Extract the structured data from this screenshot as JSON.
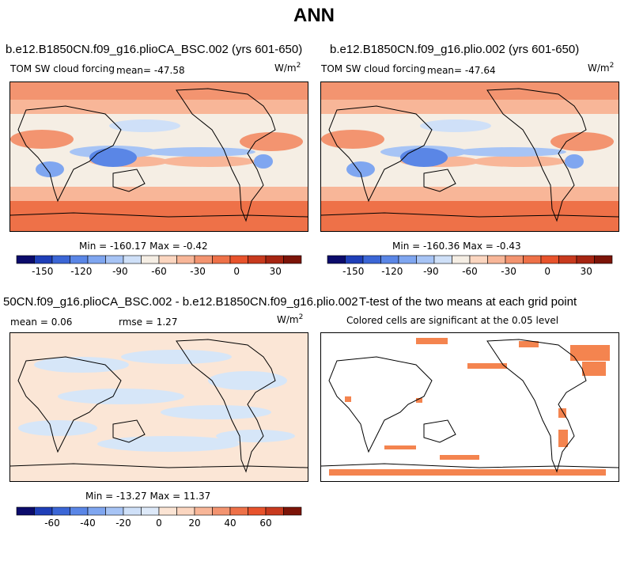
{
  "title": "ANN",
  "panels": [
    {
      "title": "b.e12.B1850CN.f09_g16.plioCA_BSC.002 (yrs 601-650)",
      "left_label": "TOM SW cloud forcing",
      "mean_label": "mean= -47.58",
      "units_prefix": "W/m",
      "units_exp": "2",
      "minmax": "Min = -160.17 Max = -0.42"
    },
    {
      "title": "b.e12.B1850CN.f09_g16.plio.002 (yrs 601-650)",
      "left_label": "TOM SW cloud forcing",
      "mean_label": "mean= -47.64",
      "units_prefix": "W/m",
      "units_exp": "2",
      "minmax": "Min = -160.36 Max = -0.43"
    },
    {
      "title": "50CN.f09_g16.plioCA_BSC.002 - b.e12.B1850CN.f09_g16.plio.002",
      "mean_label": "mean = 0.06",
      "rmse_label": "rmse = 1.27",
      "units_prefix": "W/m",
      "units_exp": "2",
      "minmax": "Min = -13.27 Max = 11.37"
    },
    {
      "title": "T-test of the two means at each grid point",
      "subtitle": "Colored cells are significant at the 0.05 level"
    }
  ],
  "chart_data": [
    {
      "type": "heatmap",
      "name": "model field colorbar",
      "levels": [
        -170,
        -160,
        -150,
        -135,
        -120,
        -105,
        -90,
        -75,
        -60,
        -45,
        -30,
        -15,
        0,
        15,
        30,
        45,
        50
      ],
      "tick_labels": [
        "-150",
        "-120",
        "-90",
        "-60",
        "-30",
        "0",
        "30"
      ],
      "tick_values": [
        -150,
        -120,
        -90,
        -60,
        -30,
        0,
        30
      ],
      "colors": [
        "#0b0b6b",
        "#1f3fb8",
        "#3b66d6",
        "#5a86e6",
        "#7fa6f0",
        "#a7c4f5",
        "#cfe0f8",
        "#f5eee4",
        "#fbd6c0",
        "#f8b698",
        "#f39470",
        "#ee7148",
        "#e8532c",
        "#c83a1e",
        "#a62512",
        "#7c1408"
      ]
    },
    {
      "type": "heatmap",
      "name": "difference colorbar",
      "levels": [
        -80,
        -70,
        -60,
        -50,
        -40,
        -30,
        -20,
        -10,
        0,
        10,
        20,
        30,
        40,
        50,
        60,
        70,
        80
      ],
      "tick_labels": [
        "-60",
        "-40",
        "-20",
        "0",
        "20",
        "40",
        "60"
      ],
      "tick_values": [
        -60,
        -40,
        -20,
        0,
        20,
        40,
        60
      ],
      "colors": [
        "#0b0b6b",
        "#1f3fb8",
        "#3b66d6",
        "#5a86e6",
        "#7fa6f0",
        "#a7c4f5",
        "#cfe0f8",
        "#dde9f9",
        "#fbe4d4",
        "#fbd6c0",
        "#f8b698",
        "#f39470",
        "#ee7148",
        "#e8532c",
        "#c83a1e",
        "#7c1408"
      ]
    }
  ],
  "colors": {
    "significant": "#f4844f",
    "diff_base": "#fbe6d6",
    "diff_neg": "#d6e6f8"
  }
}
